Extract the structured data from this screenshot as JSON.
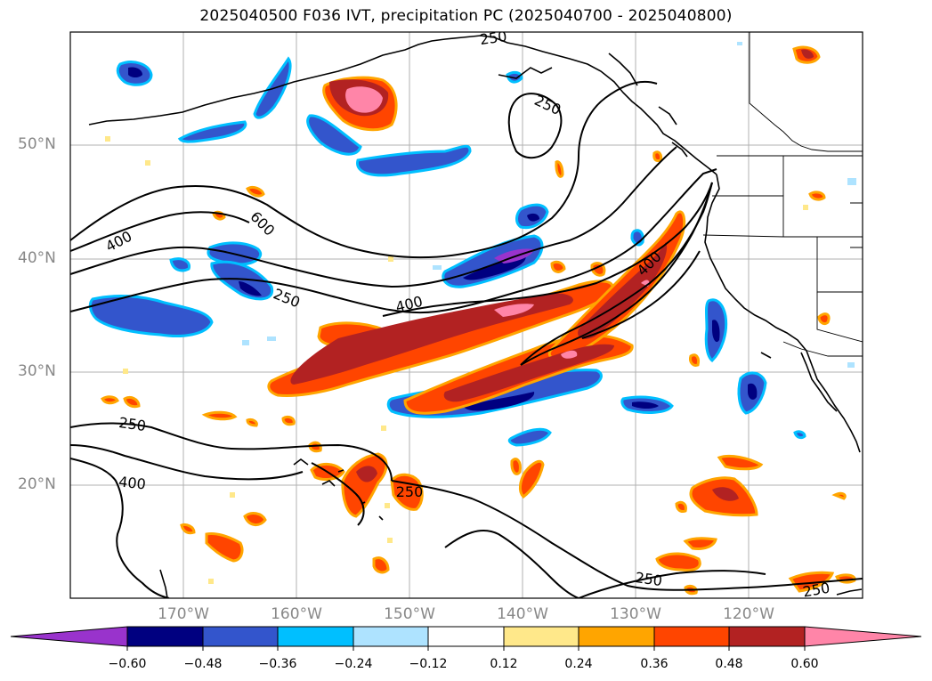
{
  "title": "2025040500 F036 IVT, precipitation PC (2025040700 - 2025040800)",
  "latitude_labels": [
    "50°N",
    "40°N",
    "30°N",
    "20°N"
  ],
  "longitude_labels": [
    "170°W",
    "160°W",
    "150°W",
    "140°W",
    "130°W",
    "120°W"
  ],
  "contour_labels": [
    "250",
    "250",
    "400",
    "600",
    "250",
    "400",
    "400",
    "250",
    "400",
    "250",
    "250",
    "250"
  ],
  "colorbar": {
    "colors": [
      "#9933cc",
      "#000080",
      "#3355cc",
      "#00bfff",
      "#aee3ff",
      "#ffffff",
      "#ffe88a",
      "#ffa500",
      "#ff4500",
      "#b22222",
      "#ff85a8"
    ],
    "ticks": [
      "−0.60",
      "−0.48",
      "−0.36",
      "−0.24",
      "−0.12",
      "0.12",
      "0.24",
      "0.36",
      "0.48",
      "0.60"
    ]
  },
  "colors": {
    "grid": "#b0b0b0",
    "coast": "#000000",
    "ivt_contour": "#000000"
  }
}
